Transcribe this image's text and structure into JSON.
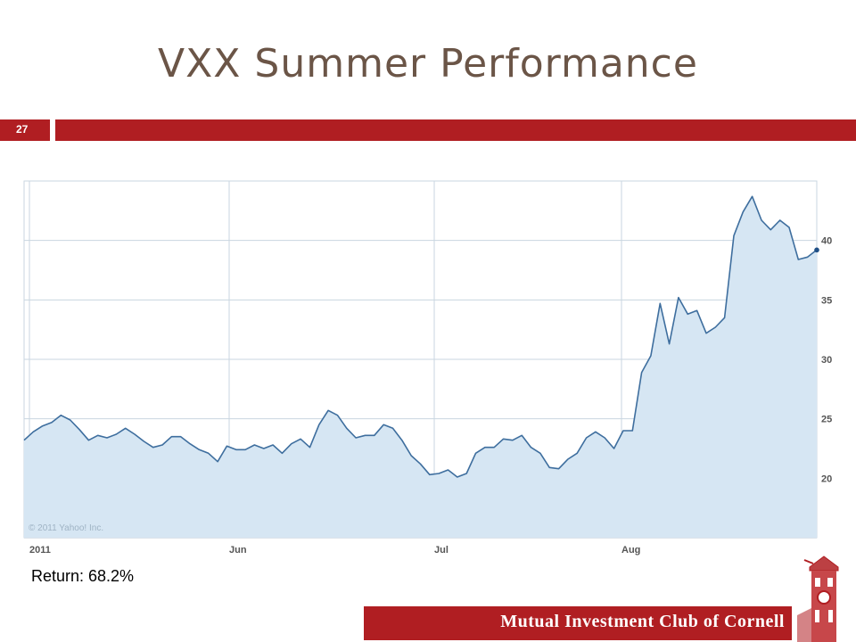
{
  "slide": {
    "title": "VXX Summer Performance",
    "number": "27",
    "return_text": "Return: 68.2%",
    "footer": "Mutual Investment Club of Cornell",
    "watermark": "© 2011 Yahoo! Inc.",
    "colors": {
      "accent": "#b01e22",
      "title": "#6b5547",
      "line": "#3e6e9e",
      "fill": "#d6e6f3",
      "grid": "#cad6e0"
    }
  },
  "chart_data": {
    "type": "area",
    "title": "",
    "xlabel": "",
    "ylabel": "",
    "x_ticks": [
      "2011",
      "Jun",
      "Jul",
      "Aug"
    ],
    "y_ticks": [
      20,
      25,
      30,
      35,
      40
    ],
    "ylim": [
      15,
      45
    ],
    "grid": true,
    "y_axis_side": "right",
    "series": [
      {
        "values": [
          23.2,
          23.9,
          24.4,
          24.7,
          25.3,
          24.9,
          24.1,
          23.2,
          23.6,
          23.4,
          23.7,
          24.2,
          23.7,
          23.1,
          22.6,
          22.8,
          23.5,
          23.5,
          22.9,
          22.4,
          22.1,
          21.4,
          22.7,
          22.4,
          22.4,
          22.8,
          22.5,
          22.8,
          22.1,
          22.9,
          23.3,
          22.6,
          24.5,
          25.7,
          25.3,
          24.2,
          23.4,
          23.6,
          23.6,
          24.5,
          24.2,
          23.2,
          21.9,
          21.2,
          20.3,
          20.4,
          20.7,
          20.1,
          20.4,
          22.1,
          22.6,
          22.6,
          23.3,
          23.2,
          23.6,
          22.6,
          22.1,
          20.9,
          20.8,
          21.6,
          22.1,
          23.4,
          23.9,
          23.4,
          22.5,
          24.0,
          24.0,
          28.9,
          30.3,
          34.7,
          31.3,
          35.2,
          33.8,
          34.1,
          32.2,
          32.7,
          33.5,
          40.4,
          42.4,
          43.7,
          41.7,
          40.9,
          41.7,
          41.1,
          38.4,
          38.6,
          39.2
        ]
      }
    ]
  }
}
